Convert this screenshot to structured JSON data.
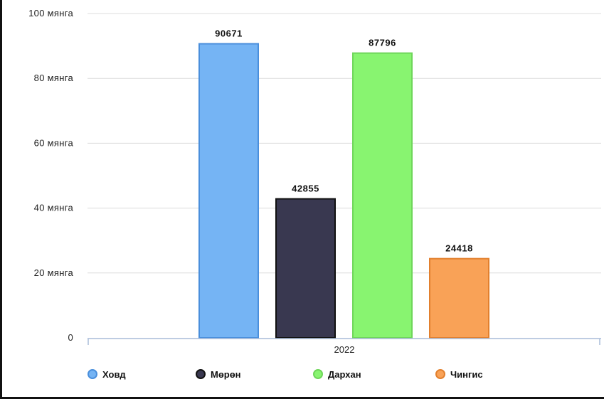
{
  "chart_data": {
    "type": "bar",
    "categories": [
      "2022"
    ],
    "series": [
      {
        "name": "Ховд",
        "values": [
          90671
        ],
        "color": "#75b4f4",
        "stroke": "#4a8fdc"
      },
      {
        "name": "Мөрөн",
        "values": [
          42855
        ],
        "color": "#393850",
        "stroke": "#111111"
      },
      {
        "name": "Дархан",
        "values": [
          87796
        ],
        "color": "#88f470",
        "stroke": "#6fd65a"
      },
      {
        "name": "Чингис",
        "values": [
          24418
        ],
        "color": "#f9a257",
        "stroke": "#e2802e"
      }
    ],
    "y_ticks": [
      "0",
      "20 мянга",
      "40 мянга",
      "60 мянга",
      "80 мянга",
      "100 мянга"
    ],
    "ylim": [
      0,
      100000
    ],
    "grid": true,
    "legend_position": "bottom-left"
  }
}
